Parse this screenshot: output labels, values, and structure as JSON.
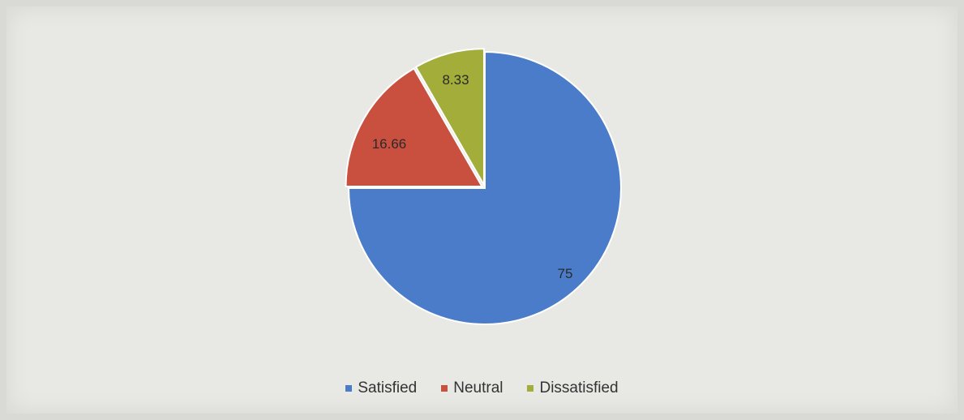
{
  "chart_data": {
    "type": "pie",
    "categories": [
      "Satisfied",
      "Neutral",
      "Dissatisfied"
    ],
    "values": [
      75,
      16.66,
      8.33
    ],
    "data_labels": [
      "75",
      "16.66",
      "8.33"
    ],
    "colors": [
      "#4a7cc9",
      "#c9503f",
      "#a3ad3a"
    ],
    "title": "",
    "legend_position": "bottom",
    "exploded_slices": [
      "Neutral",
      "Dissatisfied"
    ]
  }
}
